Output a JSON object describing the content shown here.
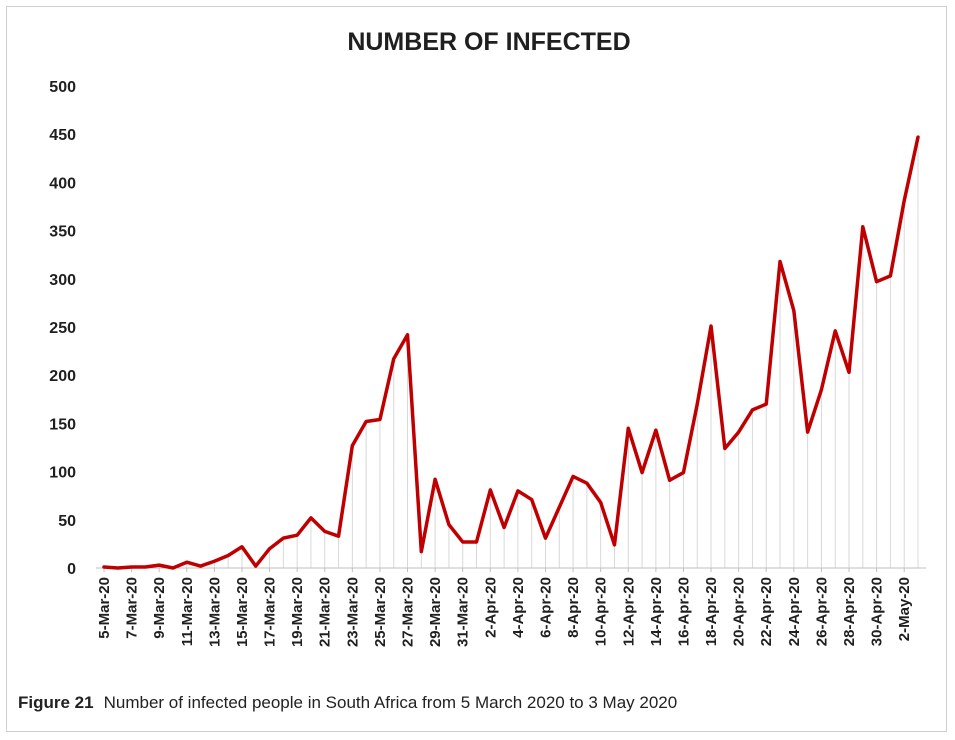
{
  "caption": {
    "label": "Figure 21",
    "text": "Number of infected people in South Africa from 5 March 2020 to 3 May 2020"
  },
  "colors": {
    "line": "#c00000",
    "drop_lines": "#d8d8d8",
    "axis": "#bfbfbf"
  },
  "chart_data": {
    "type": "line",
    "title": "NUMBER OF INFECTED",
    "xlabel": "",
    "ylabel": "",
    "ylim": [
      0,
      500
    ],
    "yticks": [
      0,
      50,
      100,
      150,
      200,
      250,
      300,
      350,
      400,
      450,
      500
    ],
    "grid": false,
    "drop_lines": true,
    "x": [
      "5-Mar-20",
      "6-Mar-20",
      "7-Mar-20",
      "8-Mar-20",
      "9-Mar-20",
      "10-Mar-20",
      "11-Mar-20",
      "12-Mar-20",
      "13-Mar-20",
      "14-Mar-20",
      "15-Mar-20",
      "16-Mar-20",
      "17-Mar-20",
      "18-Mar-20",
      "19-Mar-20",
      "20-Mar-20",
      "21-Mar-20",
      "22-Mar-20",
      "23-Mar-20",
      "24-Mar-20",
      "25-Mar-20",
      "26-Mar-20",
      "27-Mar-20",
      "28-Mar-20",
      "29-Mar-20",
      "30-Mar-20",
      "31-Mar-20",
      "1-Apr-20",
      "2-Apr-20",
      "3-Apr-20",
      "4-Apr-20",
      "5-Apr-20",
      "6-Apr-20",
      "7-Apr-20",
      "8-Apr-20",
      "9-Apr-20",
      "10-Apr-20",
      "11-Apr-20",
      "12-Apr-20",
      "13-Apr-20",
      "14-Apr-20",
      "15-Apr-20",
      "16-Apr-20",
      "17-Apr-20",
      "18-Apr-20",
      "19-Apr-20",
      "20-Apr-20",
      "21-Apr-20",
      "22-Apr-20",
      "23-Apr-20",
      "24-Apr-20",
      "25-Apr-20",
      "26-Apr-20",
      "27-Apr-20",
      "28-Apr-20",
      "29-Apr-20",
      "30-Apr-20",
      "1-May-20",
      "2-May-20",
      "3-May-20"
    ],
    "xticks": [
      "5-Mar-20",
      "7-Mar-20",
      "9-Mar-20",
      "11-Mar-20",
      "13-Mar-20",
      "15-Mar-20",
      "17-Mar-20",
      "19-Mar-20",
      "21-Mar-20",
      "23-Mar-20",
      "25-Mar-20",
      "27-Mar-20",
      "29-Mar-20",
      "31-Mar-20",
      "2-Apr-20",
      "4-Apr-20",
      "6-Apr-20",
      "8-Apr-20",
      "10-Apr-20",
      "12-Apr-20",
      "14-Apr-20",
      "16-Apr-20",
      "18-Apr-20",
      "20-Apr-20",
      "22-Apr-20",
      "24-Apr-20",
      "26-Apr-20",
      "28-Apr-20",
      "30-Apr-20",
      "2-May-20"
    ],
    "series": [
      {
        "values": [
          1,
          0,
          1,
          1,
          3,
          0,
          6,
          2,
          7,
          13,
          22,
          2,
          20,
          31,
          34,
          52,
          38,
          33,
          127,
          152,
          154,
          217,
          242,
          17,
          92,
          45,
          27,
          27,
          81,
          42,
          80,
          71,
          31,
          63,
          95,
          88,
          68,
          24,
          145,
          99,
          143,
          91,
          99,
          170,
          251,
          124,
          141,
          164,
          170,
          318,
          267,
          141,
          185,
          246,
          203,
          354,
          297,
          303,
          381,
          447
        ]
      }
    ]
  }
}
